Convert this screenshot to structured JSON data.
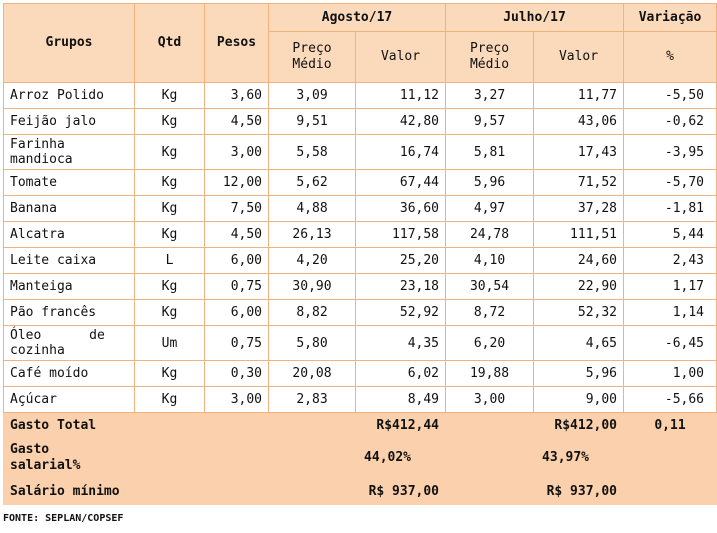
{
  "headers": {
    "grupos": "Grupos",
    "qtd": "Qtd",
    "pesos": "Pesos",
    "agosto": "Agosto/17",
    "julho": "Julho/17",
    "variacao": "Variação",
    "preco_medio_line1": "Preço",
    "preco_medio_line2": "Médio",
    "valor": "Valor",
    "percent": "%"
  },
  "rows": [
    {
      "grupo": "Arroz Polido",
      "qtd": "Kg",
      "pesos": "3,60",
      "ago_preco": "3,09",
      "ago_valor": "11,12",
      "jul_preco": "3,27",
      "jul_valor": "11,77",
      "variacao": "-5,50"
    },
    {
      "grupo": "Feijão jalo",
      "qtd": "Kg",
      "pesos": "4,50",
      "ago_preco": "9,51",
      "ago_valor": "42,80",
      "jul_preco": "9,57",
      "jul_valor": "43,06",
      "variacao": "-0,62"
    },
    {
      "grupo": "Farinha mandioca",
      "qtd": "Kg",
      "pesos": "3,00",
      "ago_preco": "5,58",
      "ago_valor": "16,74",
      "jul_preco": "5,81",
      "jul_valor": "17,43",
      "variacao": "-3,95"
    },
    {
      "grupo": "Tomate",
      "qtd": "Kg",
      "pesos": "12,00",
      "ago_preco": "5,62",
      "ago_valor": "67,44",
      "jul_preco": "5,96",
      "jul_valor": "71,52",
      "variacao": "-5,70"
    },
    {
      "grupo": "Banana",
      "qtd": "Kg",
      "pesos": "7,50",
      "ago_preco": "4,88",
      "ago_valor": "36,60",
      "jul_preco": "4,97",
      "jul_valor": "37,28",
      "variacao": "-1,81"
    },
    {
      "grupo": "Alcatra",
      "qtd": "Kg",
      "pesos": "4,50",
      "ago_preco": "26,13",
      "ago_valor": "117,58",
      "jul_preco": "24,78",
      "jul_valor": "111,51",
      "variacao": "5,44"
    },
    {
      "grupo": "Leite caixa",
      "qtd": "L",
      "pesos": "6,00",
      "ago_preco": "4,20",
      "ago_valor": "25,20",
      "jul_preco": "4,10",
      "jul_valor": "24,60",
      "variacao": "2,43"
    },
    {
      "grupo": "Manteiga",
      "qtd": "Kg",
      "pesos": "0,75",
      "ago_preco": "30,90",
      "ago_valor": "23,18",
      "jul_preco": "30,54",
      "jul_valor": "22,90",
      "variacao": "1,17"
    },
    {
      "grupo": "Pão francês",
      "qtd": "Kg",
      "pesos": "6,00",
      "ago_preco": "8,82",
      "ago_valor": "52,92",
      "jul_preco": "8,72",
      "jul_valor": "52,32",
      "variacao": "1,14"
    },
    {
      "grupo": "Óleo de cozinha",
      "qtd": "Um",
      "pesos": "0,75",
      "ago_preco": "5,80",
      "ago_valor": "4,35",
      "jul_preco": "6,20",
      "jul_valor": "4,65",
      "variacao": "-6,45"
    },
    {
      "grupo": "Café moído",
      "qtd": "Kg",
      "pesos": "0,30",
      "ago_preco": "20,08",
      "ago_valor": "6,02",
      "jul_preco": "19,88",
      "jul_valor": "5,96",
      "variacao": "1,00"
    },
    {
      "grupo": "Açúcar",
      "qtd": "Kg",
      "pesos": "3,00",
      "ago_preco": "2,83",
      "ago_valor": "8,49",
      "jul_preco": "3,00",
      "jul_valor": "9,00",
      "variacao": "-5,66"
    }
  ],
  "totals": {
    "gasto_total_label": "Gasto Total",
    "gasto_total_ago": "R$412,44",
    "gasto_total_jul": "R$412,00",
    "gasto_total_var": "0,11",
    "gasto_salarial_label": "Gasto salarial%",
    "gasto_salarial_ago": "44,02%",
    "gasto_salarial_jul": "43,97%",
    "salario_label": "Salário mínimo",
    "salario_ago": "R$ 937,00",
    "salario_jul": "R$ 937,00"
  },
  "source": "FONTE: SEPLAN/COPSEF",
  "colors": {
    "header_bg": "#fbd9bb",
    "footer_bg": "#fbd0ac",
    "border": "#f1b27e"
  }
}
